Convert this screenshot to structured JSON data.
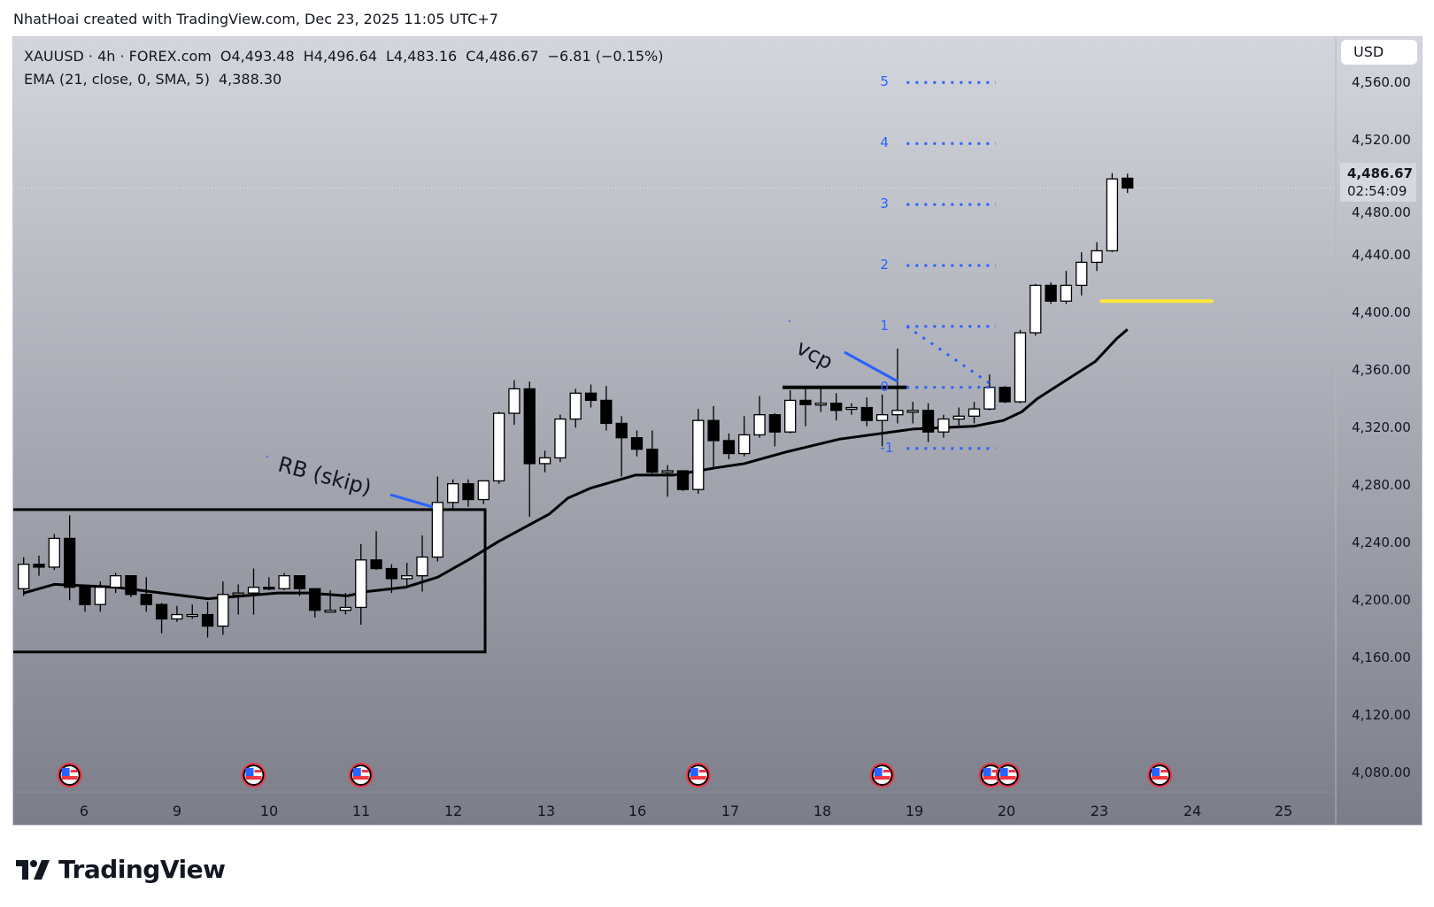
{
  "credit": "NhatHoai created with TradingView.com, Dec 23, 2025 11:05 UTC+7",
  "legend": {
    "symbol": "XAUUSD · 4h · FOREX.com",
    "open": "O4,493.48",
    "high": "H4,496.64",
    "low": "L4,483.16",
    "close": "C4,486.67",
    "change": "−6.81 (−0.15%)",
    "ema_label": "EMA (21, close, 0, SMA, 5)",
    "ema_value": "4,388.30"
  },
  "currency": "USD",
  "last_price": {
    "price": "4,486.67",
    "countdown": "02:54:09",
    "value": 4486.67
  },
  "price_axis": [
    "4,560.00",
    "4,520.00",
    "4,480.00",
    "4,440.00",
    "4,400.00",
    "4,360.00",
    "4,320.00",
    "4,280.00",
    "4,240.00",
    "4,200.00",
    "4,160.00",
    "4,120.00",
    "4,080.00"
  ],
  "time_axis": [
    "6",
    "9",
    "10",
    "11",
    "12",
    "13",
    "16",
    "17",
    "18",
    "19",
    "20",
    "23",
    "24",
    "25"
  ],
  "annotations": {
    "rb": "RB (skip)",
    "vcp": "vcp",
    "fib_levels": [
      "5",
      "4",
      "3",
      "2",
      "1",
      "0",
      "-1"
    ]
  },
  "logo": "TradingView",
  "colors": {
    "up": "#ffffff",
    "down": "#000000",
    "fib": "#2962ff",
    "yellow": "#ffe53b",
    "ema": "#000000",
    "flag_ring": "#f23645"
  },
  "chart_data": {
    "type": "candlestick",
    "symbol": "XAUUSD",
    "interval": "4h",
    "ylim": [
      4060,
      4580
    ],
    "ohlc": [
      [
        4208,
        4230,
        4203,
        4225
      ],
      [
        4225,
        4231,
        4217,
        4223
      ],
      [
        4223,
        4246,
        4221,
        4243
      ],
      [
        4243,
        4259,
        4200,
        4209
      ],
      [
        4209,
        4211,
        4192,
        4197
      ],
      [
        4197,
        4213,
        4192,
        4209
      ],
      [
        4209,
        4219,
        4205,
        4217
      ],
      [
        4217,
        4217,
        4202,
        4204
      ],
      [
        4204,
        4216,
        4192,
        4197
      ],
      [
        4197,
        4198,
        4177,
        4187
      ],
      [
        4187,
        4196,
        4185,
        4190
      ],
      [
        4190,
        4197,
        4187,
        4190
      ],
      [
        4190,
        4199,
        4174,
        4182
      ],
      [
        4182,
        4213,
        4176,
        4204
      ],
      [
        4204,
        4211,
        4190,
        4205
      ],
      [
        4205,
        4222,
        4190,
        4209
      ],
      [
        4209,
        4216,
        4207,
        4208
      ],
      [
        4208,
        4219,
        4207,
        4217
      ],
      [
        4217,
        4217,
        4203,
        4208
      ],
      [
        4208,
        4208,
        4188,
        4193
      ],
      [
        4193,
        4207,
        4192,
        4193
      ],
      [
        4193,
        4205,
        4190,
        4195
      ],
      [
        4195,
        4239,
        4183,
        4228
      ],
      [
        4228,
        4248,
        4221,
        4222
      ],
      [
        4222,
        4225,
        4205,
        4215
      ],
      [
        4215,
        4226,
        4210,
        4217
      ],
      [
        4217,
        4245,
        4206,
        4230
      ],
      [
        4230,
        4286,
        4227,
        4268
      ],
      [
        4268,
        4284,
        4263,
        4281
      ],
      [
        4281,
        4284,
        4265,
        4270
      ],
      [
        4270,
        4283,
        4267,
        4283
      ],
      [
        4283,
        4331,
        4281,
        4330
      ],
      [
        4330,
        4353,
        4322,
        4347
      ],
      [
        4347,
        4352,
        4258,
        4295
      ],
      [
        4295,
        4304,
        4289,
        4299
      ],
      [
        4299,
        4329,
        4296,
        4326
      ],
      [
        4326,
        4347,
        4320,
        4344
      ],
      [
        4344,
        4350,
        4334,
        4339
      ],
      [
        4339,
        4349,
        4318,
        4323
      ],
      [
        4323,
        4328,
        4286,
        4313
      ],
      [
        4313,
        4318,
        4300,
        4305
      ],
      [
        4305,
        4318,
        4288,
        4289
      ],
      [
        4289,
        4294,
        4272,
        4290
      ],
      [
        4290,
        4290,
        4276,
        4277
      ],
      [
        4277,
        4333,
        4274,
        4325
      ],
      [
        4325,
        4335,
        4292,
        4311
      ],
      [
        4311,
        4316,
        4298,
        4302
      ],
      [
        4302,
        4328,
        4300,
        4315
      ],
      [
        4315,
        4342,
        4313,
        4329
      ],
      [
        4329,
        4330,
        4307,
        4317
      ],
      [
        4317,
        4346,
        4316,
        4339
      ],
      [
        4339,
        4347,
        4321,
        4336
      ],
      [
        4336,
        4347,
        4331,
        4337
      ],
      [
        4337,
        4344,
        4325,
        4332
      ],
      [
        4333,
        4337,
        4329,
        4334
      ],
      [
        4334,
        4341,
        4321,
        4325
      ],
      [
        4325,
        4343,
        4307,
        4329
      ],
      [
        4329,
        4375,
        4323,
        4332
      ],
      [
        4332,
        4338,
        4323,
        4332
      ],
      [
        4332,
        4337,
        4310,
        4317
      ],
      [
        4317,
        4329,
        4313,
        4326
      ],
      [
        4326,
        4334,
        4321,
        4328
      ],
      [
        4328,
        4338,
        4323,
        4333
      ],
      [
        4333,
        4357,
        4332,
        4348
      ],
      [
        4348,
        4349,
        4337,
        4338
      ],
      [
        4338,
        4388,
        4337,
        4386
      ],
      [
        4386,
        4420,
        4384,
        4419
      ],
      [
        4419,
        4421,
        4406,
        4408
      ],
      [
        4408,
        4429,
        4406,
        4419
      ],
      [
        4419,
        4442,
        4412,
        4435
      ],
      [
        4435,
        4449,
        4429,
        4443
      ],
      [
        4443,
        4497,
        4442,
        4493
      ],
      [
        4493.48,
        4496.64,
        4483.16,
        4486.67
      ]
    ],
    "ema": [
      [
        0,
        4205
      ],
      [
        2,
        4211
      ],
      [
        6,
        4209
      ],
      [
        12,
        4201
      ],
      [
        16.6,
        4205
      ],
      [
        18.6,
        4205
      ],
      [
        21.1,
        4203
      ],
      [
        22.4,
        4206
      ],
      [
        24.9,
        4209
      ],
      [
        27,
        4216
      ],
      [
        29,
        4228
      ],
      [
        31,
        4241
      ],
      [
        34.3,
        4260
      ],
      [
        35.5,
        4271
      ],
      [
        37,
        4278
      ],
      [
        39.9,
        4287
      ],
      [
        42.4,
        4287
      ],
      [
        45.1,
        4292
      ],
      [
        47,
        4295
      ],
      [
        49.7,
        4303
      ],
      [
        53.2,
        4312
      ],
      [
        58,
        4319
      ],
      [
        62,
        4321
      ],
      [
        63.9,
        4325
      ],
      [
        65.1,
        4331
      ],
      [
        66.1,
        4340
      ],
      [
        69.9,
        4366
      ],
      [
        71.3,
        4382
      ],
      [
        72,
        4388.3
      ]
    ],
    "fib": {
      "base": 4348,
      "step": 42.4,
      "levels": [
        5,
        4,
        3,
        2,
        1,
        0,
        -1
      ]
    },
    "resistance_line": 4348,
    "yellow_line": 4408,
    "rb_box": {
      "from_index": -1,
      "to_index": 30.1,
      "top": 4263,
      "bottom": 4164
    },
    "event_flags_at_index": [
      3.0,
      15.0,
      22.0,
      44.0,
      56.0,
      63.1,
      64.2,
      74.1
    ]
  }
}
